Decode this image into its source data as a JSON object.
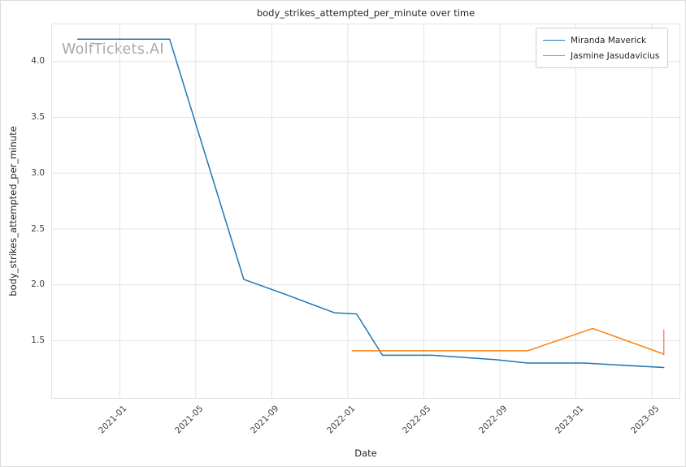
{
  "figure": {
    "watermark": "WolfTickets.AI"
  },
  "chart_data": {
    "type": "line",
    "title": "body_strikes_attempted_per_minute over time",
    "xlabel": "Date",
    "ylabel": "body_strikes_attempted_per_minute",
    "grid": true,
    "legend_position": "upper right",
    "x_tick_labels": [
      "2021-01",
      "2021-05",
      "2021-09",
      "2022-01",
      "2022-05",
      "2022-09",
      "2023-01",
      "2023-05"
    ],
    "y_ticks": [
      1.5,
      2.0,
      2.5,
      3.0,
      3.5,
      4.0
    ],
    "y_tick_labels": [
      "1.5",
      "2.0",
      "2.5",
      "3.0",
      "3.5",
      "4.0"
    ],
    "ylim": [
      0.98,
      4.34
    ],
    "xlim": [
      "2020-09-13",
      "2023-06-16"
    ],
    "grid_color": "#e3e3e3",
    "series": [
      {
        "name": "Miranda Maverick",
        "color": "#1f77b4",
        "points": [
          [
            "2020-10-25",
            4.2
          ],
          [
            "2021-03-20",
            4.2
          ],
          [
            "2021-07-17",
            2.05
          ],
          [
            "2021-09-25",
            1.91
          ],
          [
            "2021-12-10",
            1.75
          ],
          [
            "2022-01-15",
            1.74
          ],
          [
            "2022-02-26",
            1.37
          ],
          [
            "2022-05-14",
            1.37
          ],
          [
            "2022-08-25",
            1.33
          ],
          [
            "2022-10-15",
            1.3
          ],
          [
            "2023-01-14",
            1.3
          ],
          [
            "2023-05-20",
            1.26
          ]
        ]
      },
      {
        "name": "Jasmine Jasudavicius",
        "color": "#ff7f0e",
        "points": [
          [
            "2022-01-08",
            1.41
          ],
          [
            "2022-10-15",
            1.41
          ],
          [
            "2023-01-28",
            1.61
          ],
          [
            "2023-05-20",
            1.38
          ]
        ]
      }
    ],
    "error_bar": {
      "x": "2023-05-20",
      "y_min": 1.37,
      "y_max": 1.6,
      "color": "#e8756b"
    }
  }
}
